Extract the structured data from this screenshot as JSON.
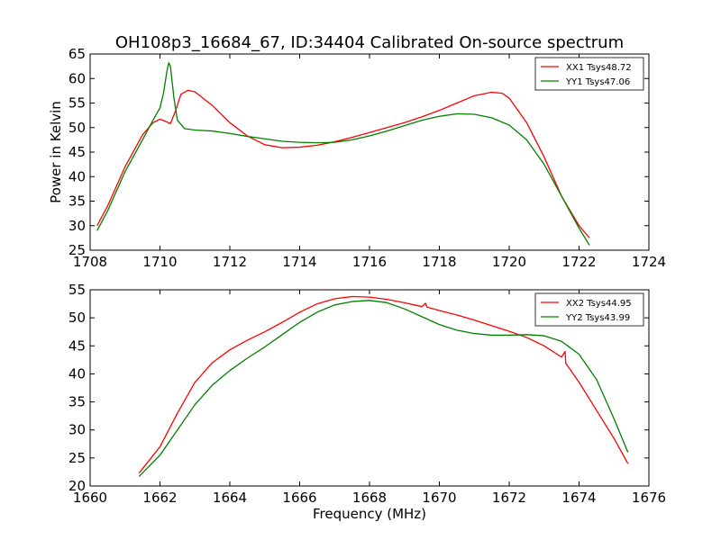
{
  "figure": {
    "title": "OH108p3_16684_67, ID:34404 Calibrated On-source spectrum",
    "colors": {
      "red": "#ff0000",
      "green": "#008000",
      "axes": "#000000",
      "background": "#ffffff"
    }
  },
  "chart_data": [
    {
      "type": "line",
      "ylabel": "Power in Kelvin",
      "xlabel": "",
      "xlim": [
        1708,
        1724
      ],
      "ylim": [
        25,
        65
      ],
      "xticks": [
        1708,
        1710,
        1712,
        1714,
        1716,
        1718,
        1720,
        1722,
        1724
      ],
      "yticks": [
        25,
        30,
        35,
        40,
        45,
        50,
        55,
        60,
        65
      ],
      "legend_position": "top-right",
      "grid": false,
      "series": [
        {
          "name": "XX1 Tsys48.72",
          "color": "#ff0000",
          "points": [
            [
              1708.2,
              30.0
            ],
            [
              1708.5,
              34.0
            ],
            [
              1709.0,
              42.0
            ],
            [
              1709.5,
              48.5
            ],
            [
              1709.8,
              51.0
            ],
            [
              1710.0,
              51.7
            ],
            [
              1710.15,
              51.3
            ],
            [
              1710.3,
              50.8
            ],
            [
              1710.45,
              53.5
            ],
            [
              1710.6,
              56.8
            ],
            [
              1710.8,
              57.6
            ],
            [
              1711.0,
              57.3
            ],
            [
              1711.5,
              54.5
            ],
            [
              1712.0,
              51.0
            ],
            [
              1712.5,
              48.3
            ],
            [
              1713.0,
              46.5
            ],
            [
              1713.5,
              45.9
            ],
            [
              1714.0,
              46.0
            ],
            [
              1714.5,
              46.4
            ],
            [
              1715.0,
              47.1
            ],
            [
              1715.5,
              48.0
            ],
            [
              1716.0,
              49.0
            ],
            [
              1716.5,
              50.0
            ],
            [
              1717.0,
              51.0
            ],
            [
              1717.5,
              52.2
            ],
            [
              1718.0,
              53.5
            ],
            [
              1718.5,
              55.0
            ],
            [
              1719.0,
              56.5
            ],
            [
              1719.5,
              57.2
            ],
            [
              1719.8,
              57.0
            ],
            [
              1720.0,
              56.0
            ],
            [
              1720.5,
              51.0
            ],
            [
              1721.0,
              44.0
            ],
            [
              1721.5,
              36.0
            ],
            [
              1722.0,
              30.0
            ],
            [
              1722.3,
              27.5
            ]
          ]
        },
        {
          "name": "YY1 Tsys47.06",
          "color": "#008000",
          "points": [
            [
              1708.2,
              29.0
            ],
            [
              1708.5,
              33.0
            ],
            [
              1709.0,
              41.0
            ],
            [
              1709.5,
              47.5
            ],
            [
              1709.8,
              51.5
            ],
            [
              1710.0,
              54.0
            ],
            [
              1710.1,
              57.0
            ],
            [
              1710.2,
              61.5
            ],
            [
              1710.25,
              63.2
            ],
            [
              1710.3,
              62.5
            ],
            [
              1710.4,
              56.0
            ],
            [
              1710.5,
              51.5
            ],
            [
              1710.7,
              49.8
            ],
            [
              1711.0,
              49.5
            ],
            [
              1711.5,
              49.3
            ],
            [
              1712.0,
              48.8
            ],
            [
              1712.5,
              48.2
            ],
            [
              1713.0,
              47.7
            ],
            [
              1713.5,
              47.2
            ],
            [
              1714.0,
              47.0
            ],
            [
              1714.5,
              46.9
            ],
            [
              1715.0,
              47.0
            ],
            [
              1715.5,
              47.5
            ],
            [
              1716.0,
              48.3
            ],
            [
              1716.5,
              49.3
            ],
            [
              1717.0,
              50.4
            ],
            [
              1717.5,
              51.5
            ],
            [
              1718.0,
              52.3
            ],
            [
              1718.5,
              52.8
            ],
            [
              1719.0,
              52.7
            ],
            [
              1719.5,
              52.0
            ],
            [
              1720.0,
              50.5
            ],
            [
              1720.5,
              47.5
            ],
            [
              1721.0,
              42.5
            ],
            [
              1721.5,
              36.0
            ],
            [
              1722.0,
              29.5
            ],
            [
              1722.3,
              26.0
            ]
          ]
        }
      ]
    },
    {
      "type": "line",
      "ylabel": "",
      "xlabel": "Frequency (MHz)",
      "xlim": [
        1660,
        1676
      ],
      "ylim": [
        20,
        55
      ],
      "xticks": [
        1660,
        1662,
        1664,
        1666,
        1668,
        1670,
        1672,
        1674,
        1676
      ],
      "yticks": [
        20,
        25,
        30,
        35,
        40,
        45,
        50,
        55
      ],
      "legend_position": "top-right",
      "grid": false,
      "series": [
        {
          "name": "XX2 Tsys44.95",
          "color": "#ff0000",
          "points": [
            [
              1661.4,
              22.3
            ],
            [
              1662.0,
              27.0
            ],
            [
              1662.5,
              33.0
            ],
            [
              1663.0,
              38.5
            ],
            [
              1663.5,
              42.0
            ],
            [
              1664.0,
              44.3
            ],
            [
              1664.5,
              46.0
            ],
            [
              1665.0,
              47.5
            ],
            [
              1665.5,
              49.2
            ],
            [
              1666.0,
              51.0
            ],
            [
              1666.5,
              52.5
            ],
            [
              1667.0,
              53.4
            ],
            [
              1667.5,
              53.8
            ],
            [
              1668.0,
              53.7
            ],
            [
              1668.5,
              53.3
            ],
            [
              1669.0,
              52.7
            ],
            [
              1669.5,
              52.0
            ],
            [
              1669.6,
              52.6
            ],
            [
              1669.65,
              51.9
            ],
            [
              1670.0,
              51.3
            ],
            [
              1670.5,
              50.5
            ],
            [
              1671.0,
              49.6
            ],
            [
              1671.5,
              48.6
            ],
            [
              1672.0,
              47.6
            ],
            [
              1672.5,
              46.5
            ],
            [
              1673.0,
              45.0
            ],
            [
              1673.5,
              43.0
            ],
            [
              1673.6,
              44.0
            ],
            [
              1673.62,
              41.9
            ],
            [
              1674.0,
              38.5
            ],
            [
              1674.5,
              33.5
            ],
            [
              1675.0,
              28.5
            ],
            [
              1675.4,
              24.0
            ]
          ]
        },
        {
          "name": "YY2 Tsys43.99",
          "color": "#008000",
          "points": [
            [
              1661.4,
              21.7
            ],
            [
              1662.0,
              25.5
            ],
            [
              1662.5,
              30.0
            ],
            [
              1663.0,
              34.5
            ],
            [
              1663.5,
              38.0
            ],
            [
              1664.0,
              40.6
            ],
            [
              1664.5,
              42.8
            ],
            [
              1665.0,
              44.8
            ],
            [
              1665.5,
              47.0
            ],
            [
              1666.0,
              49.2
            ],
            [
              1666.5,
              51.0
            ],
            [
              1667.0,
              52.3
            ],
            [
              1667.5,
              52.9
            ],
            [
              1668.0,
              53.1
            ],
            [
              1668.5,
              52.7
            ],
            [
              1669.0,
              51.6
            ],
            [
              1669.5,
              50.2
            ],
            [
              1670.0,
              48.8
            ],
            [
              1670.5,
              47.8
            ],
            [
              1671.0,
              47.2
            ],
            [
              1671.5,
              46.9
            ],
            [
              1672.0,
              46.9
            ],
            [
              1672.5,
              47.0
            ],
            [
              1673.0,
              46.8
            ],
            [
              1673.5,
              45.8
            ],
            [
              1674.0,
              43.5
            ],
            [
              1674.5,
              39.0
            ],
            [
              1675.0,
              32.0
            ],
            [
              1675.4,
              26.0
            ]
          ]
        }
      ]
    }
  ]
}
